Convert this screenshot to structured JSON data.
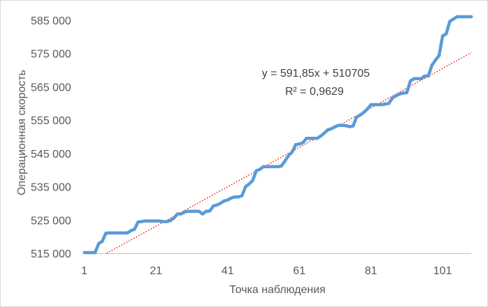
{
  "chart_data": {
    "type": "line",
    "xlabel": "Точка наблюдения",
    "ylabel": "Операционная скорость",
    "xlim": [
      1,
      109
    ],
    "ylim": [
      515000,
      586000
    ],
    "x_ticks": [
      1,
      21,
      41,
      61,
      81,
      101
    ],
    "x_tick_labels": [
      "1",
      "21",
      "41",
      "61",
      "81",
      "101"
    ],
    "y_ticks": [
      515000,
      525000,
      535000,
      545000,
      555000,
      565000,
      575000,
      585000
    ],
    "y_tick_labels": [
      "515 000",
      "525 000",
      "535 000",
      "545 000",
      "555 000",
      "565 000",
      "575 000",
      "585 000"
    ],
    "grid": false,
    "series": [
      {
        "color": "#5b9bd5",
        "x": [
          1,
          2,
          3,
          4,
          5,
          6,
          7,
          8,
          9,
          10,
          11,
          12,
          13,
          14,
          15,
          16,
          17,
          18,
          19,
          20,
          21,
          22,
          23,
          24,
          25,
          26,
          27,
          28,
          29,
          30,
          31,
          32,
          33,
          34,
          35,
          36,
          37,
          38,
          39,
          40,
          41,
          42,
          43,
          44,
          45,
          46,
          47,
          48,
          49,
          50,
          51,
          52,
          53,
          54,
          55,
          56,
          57,
          58,
          59,
          60,
          61,
          62,
          63,
          64,
          65,
          66,
          67,
          68,
          69,
          70,
          71,
          72,
          73,
          74,
          75,
          76,
          77,
          78,
          79,
          80,
          81,
          82,
          83,
          84,
          85,
          86,
          87,
          88,
          89,
          90,
          91,
          92,
          93,
          94,
          95,
          96,
          97,
          98,
          99,
          100,
          101,
          102,
          103,
          104,
          105,
          106,
          107,
          108,
          109
        ],
        "y": [
          515200,
          515200,
          515200,
          515200,
          517900,
          518600,
          521000,
          521100,
          521100,
          521100,
          521100,
          521100,
          521100,
          521800,
          522200,
          524400,
          524500,
          524700,
          524700,
          524700,
          524700,
          524700,
          524500,
          524500,
          524800,
          525600,
          526800,
          526800,
          527400,
          527600,
          527600,
          527600,
          527600,
          526800,
          527600,
          527700,
          529200,
          529500,
          530000,
          530700,
          531000,
          531600,
          531900,
          531900,
          532300,
          535000,
          535800,
          536900,
          539800,
          540200,
          541000,
          541000,
          541000,
          541000,
          541000,
          541200,
          542700,
          544300,
          545400,
          547600,
          547800,
          548200,
          549500,
          549500,
          549500,
          549500,
          550200,
          551100,
          552100,
          552400,
          553000,
          553400,
          553400,
          553300,
          553000,
          553200,
          555900,
          556500,
          557300,
          558300,
          559600,
          559600,
          559600,
          559600,
          559800,
          560000,
          561600,
          562300,
          562800,
          563100,
          563200,
          566700,
          567400,
          567400,
          567400,
          568200,
          568200,
          571400,
          573000,
          574300,
          580200,
          580900,
          584600,
          585300,
          586000,
          586000,
          586000,
          586000,
          586000
        ]
      }
    ],
    "trendline": {
      "type": "linear",
      "slope": 591.85,
      "intercept": 510705,
      "color": "#ff0000",
      "style": "dotted",
      "equation_label": "y = 591,85x + 510705",
      "r2_label": "R² = 0,9629"
    }
  }
}
